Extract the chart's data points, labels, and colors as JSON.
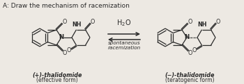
{
  "title": "A: Draw the mechanism of racemization",
  "title_fontsize": 6.5,
  "title_color": "#2a2a2a",
  "bg_color": "#ede9e3",
  "line_color": "#2a2a2a",
  "h2o_text": "H$_2$O",
  "spontaneous_text": "spontaneous\nracemization",
  "left_label1": "(+)-thalidomide",
  "left_label2": "(effective form)",
  "right_label1": "(−)-thalidomide",
  "right_label2": "(teratogenic form)",
  "lw": 0.9
}
